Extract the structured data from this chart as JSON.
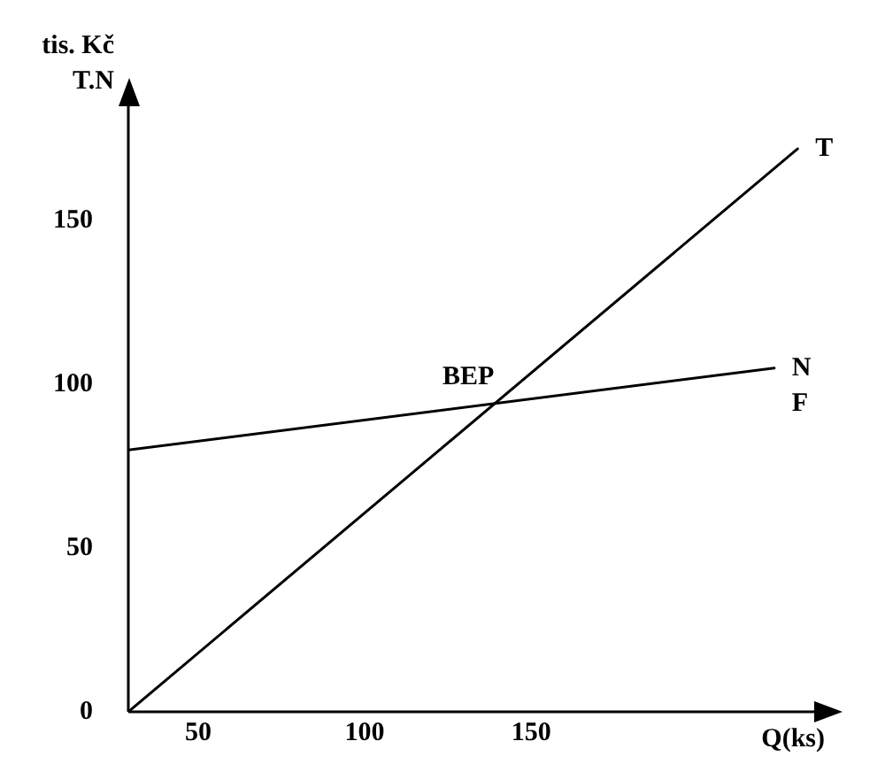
{
  "chart_data": {
    "type": "line",
    "ylabel": "T.N",
    "xlabel": "Q(ks)",
    "annotations": [
      "tis. Kč",
      {
        "text": "BEP",
        "x": 141,
        "y": 95
      },
      "F"
    ],
    "series": [
      {
        "name": "T",
        "color": "#000000",
        "x": [
          29,
          230
        ],
        "values": [
          0,
          172
        ]
      },
      {
        "name": "N",
        "color": "#000000",
        "x": [
          29,
          223
        ],
        "values": [
          80,
          105
        ]
      }
    ],
    "xlim": [
      29,
      235
    ],
    "xticks": [
      50,
      100,
      150
    ],
    "ylim": [
      0,
      185
    ],
    "yticks": [
      0,
      50,
      100,
      150
    ],
    "grid": false,
    "legend": false,
    "marker": "none",
    "line_style": "solid"
  }
}
